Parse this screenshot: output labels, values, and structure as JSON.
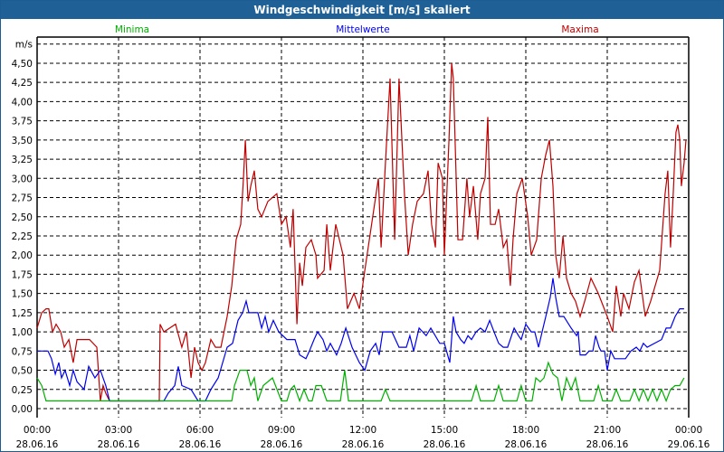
{
  "window": {
    "title": "Windgeschwindigkeit [m/s] skaliert"
  },
  "chart_data": {
    "type": "line",
    "title": "Windgeschwindigkeit [m/s] skaliert",
    "ylabel": "m/s",
    "xlabel": "",
    "ylim": [
      0,
      4.75
    ],
    "xlim_hours": [
      0,
      24
    ],
    "grid": true,
    "legend_placement": "top",
    "y_ticks": [
      "0,00",
      "0,25",
      "0,50",
      "0,75",
      "1,00",
      "1,25",
      "1,50",
      "1,75",
      "2,00",
      "2,25",
      "2,50",
      "2,75",
      "3,00",
      "3,25",
      "3,50",
      "3,75",
      "4,00",
      "4,25",
      "4,50"
    ],
    "x_ticks": [
      {
        "time": "00:00",
        "date": "28.06.16"
      },
      {
        "time": "03:00",
        "date": "28.06.16"
      },
      {
        "time": "06:00",
        "date": "28.06.16"
      },
      {
        "time": "09:00",
        "date": "28.06.16"
      },
      {
        "time": "12:00",
        "date": "28.06.16"
      },
      {
        "time": "15:00",
        "date": "28.06.16"
      },
      {
        "time": "18:00",
        "date": "28.06.16"
      },
      {
        "time": "21:00",
        "date": "28.06.16"
      },
      {
        "time": "00:00",
        "date": "29.06.16"
      }
    ],
    "series": [
      {
        "name": "Minima",
        "color": "#00b000",
        "t": [
          0,
          0.17,
          0.33,
          7.17,
          7.27,
          7.47,
          7.73,
          7.87,
          8,
          8.13,
          8.33,
          8.67,
          9,
          9.2,
          9.33,
          9.47,
          9.67,
          9.83,
          10,
          10.13,
          10.27,
          10.47,
          10.67,
          11.17,
          11.33,
          11.47,
          12.67,
          12.83,
          13,
          16,
          16.17,
          16.33,
          16.83,
          17,
          17.17,
          17.67,
          17.83,
          18,
          18.23,
          18.37,
          18.53,
          18.67,
          18.83,
          19,
          19.17,
          19.33,
          19.5,
          19.67,
          19.83,
          20,
          20.5,
          20.67,
          20.83,
          21.17,
          21.33,
          21.5,
          21.83,
          22,
          22.17,
          22.33,
          22.5,
          22.67,
          22.83,
          23,
          23.17,
          23.33,
          23.5,
          23.67,
          23.83
        ],
        "v": [
          0.4,
          0.3,
          0.1,
          0.1,
          0.3,
          0.5,
          0.5,
          0.3,
          0.4,
          0.1,
          0.3,
          0.4,
          0.1,
          0.1,
          0.25,
          0.3,
          0.1,
          0.25,
          0.1,
          0.1,
          0.3,
          0.3,
          0.1,
          0.1,
          0.5,
          0.1,
          0.1,
          0.25,
          0.1,
          0.1,
          0.3,
          0.1,
          0.1,
          0.3,
          0.1,
          0.1,
          0.3,
          0.1,
          0.1,
          0.4,
          0.35,
          0.4,
          0.6,
          0.45,
          0.4,
          0.1,
          0.4,
          0.25,
          0.4,
          0.1,
          0.1,
          0.3,
          0.1,
          0.1,
          0.25,
          0.1,
          0.1,
          0.25,
          0.1,
          0.25,
          0.1,
          0.25,
          0.1,
          0.25,
          0.1,
          0.25,
          0.3,
          0.3,
          0.4
        ]
      },
      {
        "name": "Mittelwerte",
        "color": "#0000ee",
        "t": [
          0,
          0.4,
          0.53,
          0.67,
          0.8,
          0.9,
          1.03,
          1.2,
          1.33,
          1.47,
          1.6,
          1.73,
          1.9,
          2.13,
          2.33,
          2.53,
          2.67,
          4.67,
          4.83,
          5.07,
          5.2,
          5.33,
          5.67,
          5.93,
          6.2,
          6.4,
          6.67,
          7,
          7.2,
          7.4,
          7.57,
          7.7,
          7.8,
          8.13,
          8.27,
          8.4,
          8.53,
          8.7,
          8.9,
          9.2,
          9.5,
          9.67,
          9.9,
          10.03,
          10.2,
          10.33,
          10.53,
          10.67,
          10.8,
          11.03,
          11.2,
          11.37,
          11.6,
          11.87,
          12.07,
          12.27,
          12.47,
          12.6,
          12.73,
          13.07,
          13.33,
          13.6,
          13.73,
          13.87,
          14.07,
          14.33,
          14.5,
          14.83,
          15,
          15.2,
          15.33,
          15.43,
          15.6,
          15.73,
          15.87,
          16,
          16.17,
          16.33,
          16.5,
          16.67,
          16.83,
          17,
          17.17,
          17.33,
          17.57,
          17.73,
          17.83,
          18,
          18.2,
          18.33,
          18.47,
          18.6,
          18.77,
          18.9,
          19,
          19.1,
          19.23,
          19.4,
          19.67,
          19.87,
          19.93,
          20,
          20.2,
          20.33,
          20.47,
          20.57,
          20.7,
          20.77,
          20.9,
          21,
          21.13,
          21.27,
          21.67,
          21.87,
          22.07,
          22.2,
          22.33,
          22.47,
          23,
          23.17,
          23.33,
          23.5,
          23.67,
          23.83
        ],
        "v": [
          0.75,
          0.75,
          0.65,
          0.45,
          0.6,
          0.4,
          0.5,
          0.3,
          0.5,
          0.35,
          0.3,
          0.25,
          0.55,
          0.4,
          0.5,
          0.3,
          0.1,
          0.1,
          0.2,
          0.3,
          0.55,
          0.3,
          0.25,
          0.1,
          0.1,
          0.25,
          0.4,
          0.8,
          0.85,
          1.15,
          1.25,
          1.4,
          1.25,
          1.25,
          1.05,
          1.2,
          1.0,
          1.15,
          1.0,
          0.9,
          0.9,
          0.7,
          0.65,
          0.75,
          0.9,
          1.0,
          0.9,
          0.75,
          0.85,
          0.7,
          0.85,
          1.05,
          0.8,
          0.6,
          0.5,
          0.75,
          0.85,
          0.7,
          1.0,
          1.0,
          0.8,
          0.8,
          0.95,
          0.75,
          1.05,
          0.95,
          1.05,
          0.85,
          0.85,
          0.6,
          1.2,
          1.0,
          0.9,
          0.85,
          0.95,
          0.9,
          1.0,
          1.05,
          1.0,
          1.15,
          1.0,
          0.85,
          0.8,
          0.8,
          1.05,
          0.95,
          0.9,
          1.1,
          1.0,
          1.0,
          0.8,
          1.0,
          1.25,
          1.45,
          1.7,
          1.45,
          1.2,
          1.2,
          1.05,
          0.95,
          1.0,
          0.7,
          0.7,
          0.75,
          0.75,
          0.95,
          0.8,
          0.75,
          0.75,
          0.5,
          0.75,
          0.65,
          0.65,
          0.75,
          0.8,
          0.75,
          0.85,
          0.8,
          0.9,
          1.05,
          1.05,
          1.2,
          1.3,
          1.3
        ]
      },
      {
        "name": "Maxima",
        "color": "#c00000",
        "t": [
          0,
          0.17,
          0.33,
          0.43,
          0.57,
          0.7,
          0.87,
          1,
          1.17,
          1.33,
          1.47,
          1.93,
          2.2,
          2.33,
          2.43,
          2.53,
          2.67,
          4.5,
          4.53,
          4.67,
          5.1,
          5.33,
          5.5,
          5.67,
          5.8,
          5.93,
          6.07,
          6.2,
          6.4,
          6.57,
          6.77,
          7,
          7.17,
          7.33,
          7.5,
          7.6,
          7.67,
          7.77,
          7.87,
          8,
          8.13,
          8.27,
          8.5,
          8.83,
          9,
          9.17,
          9.33,
          9.43,
          9.57,
          9.67,
          9.77,
          9.9,
          10.1,
          10.27,
          10.33,
          10.57,
          10.67,
          10.8,
          11,
          11.27,
          11.43,
          11.67,
          11.87,
          12.07,
          12.57,
          12.67,
          12.83,
          13,
          13.17,
          13.33,
          13.53,
          13.67,
          13.83,
          14,
          14.23,
          14.4,
          14.53,
          14.67,
          14.77,
          14.93,
          15,
          15.17,
          15.27,
          15.33,
          15.5,
          15.67,
          15.83,
          15.93,
          16.07,
          16.23,
          16.33,
          16.5,
          16.6,
          16.7,
          16.87,
          17,
          17.17,
          17.3,
          17.43,
          17.53,
          17.67,
          17.87,
          18.07,
          18.2,
          18.4,
          18.57,
          18.73,
          18.87,
          19,
          19.1,
          19.23,
          19.37,
          19.5,
          19.67,
          19.83,
          20,
          20.17,
          20.4,
          20.67,
          21,
          21.2,
          21.33,
          21.5,
          21.6,
          21.8,
          22,
          22.17,
          22.4,
          22.6,
          22.93,
          23.13,
          23.23,
          23.33,
          23.43,
          23.53,
          23.6,
          23.67,
          23.73,
          23.83,
          23.9
        ],
        "v": [
          1.05,
          1.25,
          1.3,
          1.3,
          1.0,
          1.1,
          1.0,
          0.8,
          0.9,
          0.6,
          0.9,
          0.9,
          0.8,
          0.1,
          0.3,
          0.2,
          0.1,
          0.1,
          1.1,
          1.0,
          1.1,
          0.8,
          1.0,
          0.4,
          0.8,
          0.6,
          0.5,
          0.6,
          0.9,
          0.8,
          0.8,
          1.2,
          1.6,
          2.2,
          2.4,
          3.0,
          3.5,
          2.7,
          2.9,
          3.1,
          2.6,
          2.5,
          2.7,
          2.8,
          2.4,
          2.5,
          2.1,
          2.6,
          1.1,
          1.9,
          1.6,
          2.1,
          2.2,
          2.0,
          1.7,
          1.8,
          2.4,
          1.8,
          2.4,
          2.0,
          1.3,
          1.5,
          1.3,
          1.8,
          3.0,
          2.1,
          3.2,
          4.3,
          2.2,
          4.3,
          2.8,
          2.0,
          2.4,
          2.7,
          2.8,
          3.1,
          2.4,
          2.1,
          3.2,
          3.0,
          2.0,
          3.5,
          4.5,
          4.3,
          2.2,
          2.2,
          3.0,
          2.5,
          2.9,
          2.2,
          2.8,
          3.0,
          3.8,
          2.4,
          2.4,
          2.6,
          2.1,
          2.2,
          1.6,
          2.2,
          2.8,
          3.0,
          2.5,
          2.0,
          2.2,
          3.0,
          3.3,
          3.5,
          2.9,
          2.0,
          1.7,
          2.25,
          1.7,
          1.5,
          1.4,
          1.2,
          1.4,
          1.7,
          1.5,
          1.2,
          1.0,
          1.6,
          1.2,
          1.5,
          1.3,
          1.65,
          1.8,
          1.2,
          1.4,
          1.8,
          2.8,
          3.1,
          2.1,
          2.8,
          3.6,
          3.7,
          3.5,
          2.9,
          3.2,
          3.5
        ]
      }
    ]
  }
}
